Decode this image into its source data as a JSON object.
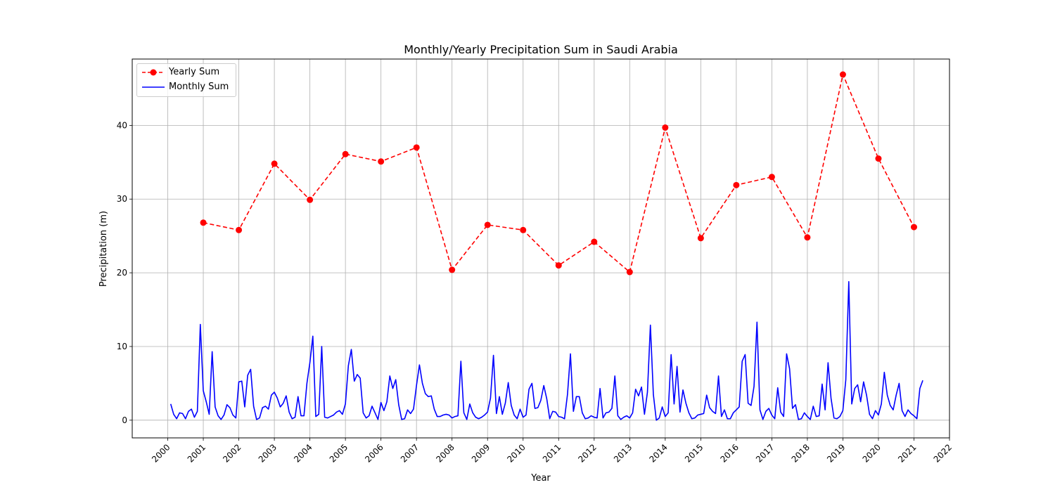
{
  "chart_data": {
    "type": "line",
    "title": "Monthly/Yearly Precipitation Sum in Saudi Arabia",
    "xlabel": "Year",
    "ylabel": "Precipitation (m)",
    "xlim": [
      1999.0,
      2022.0
    ],
    "ylim": [
      -2.4,
      49.0
    ],
    "x_ticks": [
      2000,
      2001,
      2002,
      2003,
      2004,
      2005,
      2006,
      2007,
      2008,
      2009,
      2010,
      2011,
      2012,
      2013,
      2014,
      2015,
      2016,
      2017,
      2018,
      2019,
      2020,
      2021,
      2022
    ],
    "y_ticks": [
      0,
      10,
      20,
      30,
      40
    ],
    "grid": true,
    "legend_position": "top-left",
    "colors": {
      "yearly": "#ff0000",
      "monthly": "#0000ff",
      "grid": "#b0b0b0"
    },
    "series": [
      {
        "name": "Yearly Sum",
        "style": "dashed-marker",
        "x": [
          2001,
          2002,
          2003,
          2004,
          2005,
          2006,
          2007,
          2008,
          2009,
          2010,
          2011,
          2012,
          2013,
          2014,
          2015,
          2016,
          2017,
          2018,
          2019,
          2020,
          2021
        ],
        "values": [
          26.8,
          25.8,
          34.8,
          29.9,
          36.1,
          35.1,
          37.0,
          20.4,
          26.5,
          25.8,
          21.0,
          24.2,
          20.1,
          39.7,
          24.7,
          31.9,
          33.0,
          24.8,
          46.9,
          35.5,
          26.2
        ]
      },
      {
        "name": "Monthly Sum",
        "style": "solid",
        "x_start": 2000.083,
        "x_step": 0.08333,
        "values": [
          2.2,
          0.8,
          0.2,
          1.0,
          0.9,
          0.2,
          1.2,
          1.5,
          0.4,
          1.2,
          13.0,
          4.0,
          2.5,
          0.8,
          9.3,
          1.8,
          0.6,
          0.1,
          0.7,
          2.1,
          1.7,
          0.7,
          0.3,
          5.2,
          5.3,
          1.8,
          6.1,
          6.9,
          1.9,
          0.1,
          0.3,
          1.7,
          1.9,
          1.5,
          3.4,
          3.8,
          3.0,
          1.8,
          2.3,
          3.3,
          1.1,
          0.2,
          0.4,
          3.2,
          0.6,
          0.6,
          5.0,
          7.8,
          11.4,
          0.5,
          0.8,
          10.0,
          0.4,
          0.3,
          0.5,
          0.7,
          1.1,
          1.3,
          0.8,
          2.2,
          7.4,
          9.6,
          5.3,
          6.2,
          5.7,
          1.0,
          0.3,
          0.6,
          1.9,
          1.0,
          0.1,
          2.4,
          1.3,
          2.5,
          6.0,
          4.3,
          5.5,
          2.1,
          0.1,
          0.2,
          1.4,
          0.9,
          1.5,
          4.7,
          7.5,
          5.0,
          3.6,
          3.2,
          3.3,
          1.5,
          0.5,
          0.5,
          0.7,
          0.8,
          0.7,
          0.3,
          0.5,
          0.6,
          8.0,
          1.0,
          0.1,
          2.2,
          1.0,
          0.4,
          0.2,
          0.4,
          0.7,
          1.1,
          3.0,
          8.8,
          0.9,
          3.2,
          0.8,
          2.3,
          5.1,
          2.0,
          0.7,
          0.2,
          1.5,
          0.4,
          0.7,
          4.2,
          5.0,
          1.6,
          1.7,
          2.7,
          4.7,
          2.9,
          0.2,
          1.2,
          1.1,
          0.5,
          0.4,
          0.2,
          3.5,
          9.0,
          1.2,
          3.2,
          3.2,
          1.0,
          0.2,
          0.3,
          0.6,
          0.4,
          0.3,
          4.3,
          0.3,
          1.0,
          1.1,
          1.6,
          6.0,
          0.6,
          0.1,
          0.4,
          0.6,
          0.3,
          1.0,
          4.2,
          3.3,
          4.5,
          0.8,
          3.8,
          12.9,
          3.5,
          0.0,
          0.3,
          1.8,
          0.5,
          1.0,
          8.9,
          2.2,
          7.3,
          1.1,
          4.1,
          2.3,
          1.0,
          0.2,
          0.3,
          0.7,
          0.8,
          0.9,
          3.4,
          1.7,
          1.2,
          0.9,
          6.0,
          0.5,
          1.4,
          0.2,
          0.2,
          1.0,
          1.4,
          1.8,
          8.0,
          8.9,
          2.3,
          2.0,
          4.6,
          13.3,
          1.4,
          0.1,
          1.2,
          1.6,
          0.7,
          0.2,
          4.4,
          1.1,
          0.5,
          9.0,
          7.0,
          1.6,
          2.1,
          0.1,
          0.2,
          1.0,
          0.5,
          0.1,
          1.9,
          0.5,
          0.6,
          4.9,
          1.4,
          7.8,
          3.0,
          0.3,
          0.2,
          0.5,
          1.3,
          5.5,
          18.8,
          2.2,
          4.3,
          4.8,
          2.5,
          5.2,
          3.4,
          0.8,
          0.2,
          1.3,
          0.7,
          2.2,
          6.5,
          3.4,
          2.0,
          1.4,
          3.4,
          5.0,
          1.3,
          0.5,
          1.4,
          0.9,
          0.6,
          0.2,
          4.3,
          5.4
        ]
      }
    ]
  }
}
